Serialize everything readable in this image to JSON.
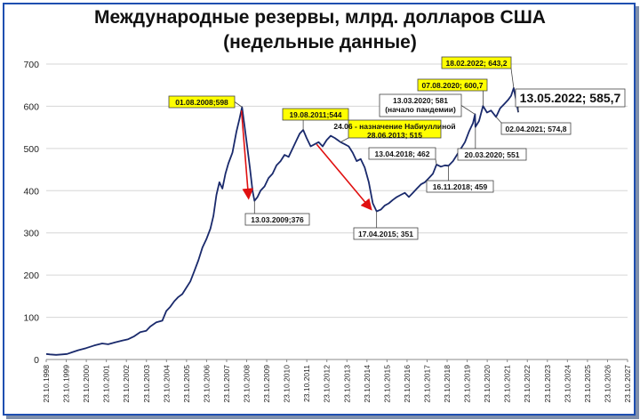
{
  "chart_data": {
    "type": "line",
    "title": "Международные резервы, млрд. долларов США",
    "subtitle": "(недельные данные)",
    "ylim": [
      0,
      700
    ],
    "yticks": [
      "0",
      "100",
      "200",
      "300",
      "400",
      "500",
      "600",
      "700"
    ],
    "xticks": [
      "23.10.1998",
      "23.10.1999",
      "23.10.2000",
      "23.10.2001",
      "23.10.2002",
      "23.10.2003",
      "23.10.2004",
      "23.10.2005",
      "23.10.2006",
      "23.10.2007",
      "23.10.2008",
      "23.10.2009",
      "23.10.2010",
      "23.10.2011",
      "23.10.2012",
      "23.10.2013",
      "23.10.2014",
      "23.10.2015",
      "23.10.2016",
      "23.10.2017",
      "23.10.2018",
      "23.10.2019",
      "23.10.2020",
      "23.10.2021",
      "23.10.2022",
      "23.10.2023",
      "23.10.2024",
      "23.10.2025",
      "23.10.2026",
      "23.10.2027"
    ],
    "xlim": [
      1998.81,
      2027.81
    ],
    "series": [
      {
        "color": "#1a2a6c",
        "points": [
          [
            1998.81,
            13
          ],
          [
            1999.0,
            12
          ],
          [
            1999.3,
            11
          ],
          [
            1999.6,
            12
          ],
          [
            1999.85,
            13
          ],
          [
            2000.1,
            17
          ],
          [
            2000.4,
            22
          ],
          [
            2000.8,
            27
          ],
          [
            2001.2,
            33
          ],
          [
            2001.6,
            38
          ],
          [
            2001.9,
            36
          ],
          [
            2002.2,
            40
          ],
          [
            2002.6,
            45
          ],
          [
            2002.9,
            48
          ],
          [
            2003.2,
            55
          ],
          [
            2003.5,
            65
          ],
          [
            2003.8,
            68
          ],
          [
            2004.0,
            78
          ],
          [
            2004.3,
            88
          ],
          [
            2004.6,
            92
          ],
          [
            2004.8,
            115
          ],
          [
            2005.0,
            125
          ],
          [
            2005.2,
            138
          ],
          [
            2005.4,
            148
          ],
          [
            2005.6,
            155
          ],
          [
            2005.8,
            170
          ],
          [
            2006.0,
            185
          ],
          [
            2006.2,
            210
          ],
          [
            2006.4,
            235
          ],
          [
            2006.6,
            265
          ],
          [
            2006.8,
            285
          ],
          [
            2007.0,
            310
          ],
          [
            2007.15,
            340
          ],
          [
            2007.3,
            390
          ],
          [
            2007.45,
            420
          ],
          [
            2007.6,
            405
          ],
          [
            2007.75,
            440
          ],
          [
            2007.9,
            465
          ],
          [
            2008.1,
            490
          ],
          [
            2008.3,
            540
          ],
          [
            2008.45,
            570
          ],
          [
            2008.58,
            598
          ],
          [
            2008.7,
            555
          ],
          [
            2008.85,
            500
          ],
          [
            2008.97,
            455
          ],
          [
            2009.1,
            400
          ],
          [
            2009.2,
            376
          ],
          [
            2009.35,
            385
          ],
          [
            2009.5,
            400
          ],
          [
            2009.7,
            410
          ],
          [
            2009.9,
            430
          ],
          [
            2010.1,
            440
          ],
          [
            2010.3,
            460
          ],
          [
            2010.5,
            470
          ],
          [
            2010.7,
            485
          ],
          [
            2010.9,
            480
          ],
          [
            2011.1,
            500
          ],
          [
            2011.3,
            520
          ],
          [
            2011.45,
            535
          ],
          [
            2011.63,
            544
          ],
          [
            2011.8,
            525
          ],
          [
            2012.0,
            505
          ],
          [
            2012.2,
            510
          ],
          [
            2012.4,
            515
          ],
          [
            2012.6,
            505
          ],
          [
            2012.8,
            520
          ],
          [
            2013.0,
            530
          ],
          [
            2013.2,
            525
          ],
          [
            2013.49,
            515
          ],
          [
            2013.7,
            510
          ],
          [
            2013.9,
            505
          ],
          [
            2014.1,
            490
          ],
          [
            2014.3,
            470
          ],
          [
            2014.5,
            475
          ],
          [
            2014.7,
            455
          ],
          [
            2014.9,
            420
          ],
          [
            2015.1,
            370
          ],
          [
            2015.29,
            351
          ],
          [
            2015.5,
            355
          ],
          [
            2015.7,
            365
          ],
          [
            2015.9,
            370
          ],
          [
            2016.1,
            378
          ],
          [
            2016.3,
            385
          ],
          [
            2016.5,
            390
          ],
          [
            2016.7,
            395
          ],
          [
            2016.9,
            385
          ],
          [
            2017.1,
            395
          ],
          [
            2017.3,
            405
          ],
          [
            2017.5,
            415
          ],
          [
            2017.7,
            420
          ],
          [
            2017.9,
            430
          ],
          [
            2018.1,
            440
          ],
          [
            2018.28,
            462
          ],
          [
            2018.5,
            457
          ],
          [
            2018.7,
            460
          ],
          [
            2018.88,
            459
          ],
          [
            2019.1,
            470
          ],
          [
            2019.3,
            485
          ],
          [
            2019.5,
            500
          ],
          [
            2019.7,
            515
          ],
          [
            2019.9,
            540
          ],
          [
            2020.1,
            560
          ],
          [
            2020.2,
            581
          ],
          [
            2020.22,
            551
          ],
          [
            2020.4,
            565
          ],
          [
            2020.6,
            600.7
          ],
          [
            2020.8,
            585
          ],
          [
            2021.0,
            590
          ],
          [
            2021.25,
            574.8
          ],
          [
            2021.45,
            595
          ],
          [
            2021.65,
            605
          ],
          [
            2021.85,
            615
          ],
          [
            2022.0,
            625
          ],
          [
            2022.13,
            643.2
          ],
          [
            2022.25,
            615
          ],
          [
            2022.36,
            585.7
          ]
        ]
      }
    ],
    "annotations": [
      {
        "label": "01.08.2008;598",
        "x": 2008.58,
        "y": 598,
        "style": "yellow"
      },
      {
        "label": "13.03.2009;376",
        "x": 2009.2,
        "y": 376,
        "style": "white"
      },
      {
        "label": "19.08.2011;544",
        "x": 2011.63,
        "y": 544,
        "style": "yellow"
      },
      {
        "label": "24.06 - назначение Набиуллиной",
        "x": 2013.49,
        "y": 515,
        "style": "yellow"
      },
      {
        "label": "28.06.2013; 515",
        "x": 2013.49,
        "y": 515,
        "style": "yellow"
      },
      {
        "label": "17.04.2015; 351",
        "x": 2015.29,
        "y": 351,
        "style": "white"
      },
      {
        "label": "13.04.2018; 462",
        "x": 2018.28,
        "y": 462,
        "style": "white"
      },
      {
        "label": "16.11.2018; 459",
        "x": 2018.88,
        "y": 459,
        "style": "white"
      },
      {
        "label": "13.03.2020; 581",
        "x": 2020.2,
        "y": 581,
        "style": "white"
      },
      {
        "label": "(начало пандемии)",
        "x": 2020.2,
        "y": 581,
        "style": "white"
      },
      {
        "label": "20.03.2020; 551",
        "x": 2020.22,
        "y": 551,
        "style": "white"
      },
      {
        "label": "07.08.2020; 600,7",
        "x": 2020.6,
        "y": 600.7,
        "style": "yellow"
      },
      {
        "label": "02.04.2021; 574,8",
        "x": 2021.25,
        "y": 574.8,
        "style": "white"
      },
      {
        "label": "18.02.2022; 643,2",
        "x": 2022.13,
        "y": 643.2,
        "style": "yellow"
      },
      {
        "label": "13.05.2022; 585,7",
        "x": 2022.36,
        "y": 585.7,
        "style": "big"
      }
    ],
    "arrows": [
      {
        "from": [
          2008.55,
          590
        ],
        "to": [
          2008.9,
          385
        ],
        "color": "#e01010"
      },
      {
        "from": [
          2012.3,
          510
        ],
        "to": [
          2014.98,
          358
        ],
        "color": "#e01010"
      }
    ],
    "grid": true
  }
}
